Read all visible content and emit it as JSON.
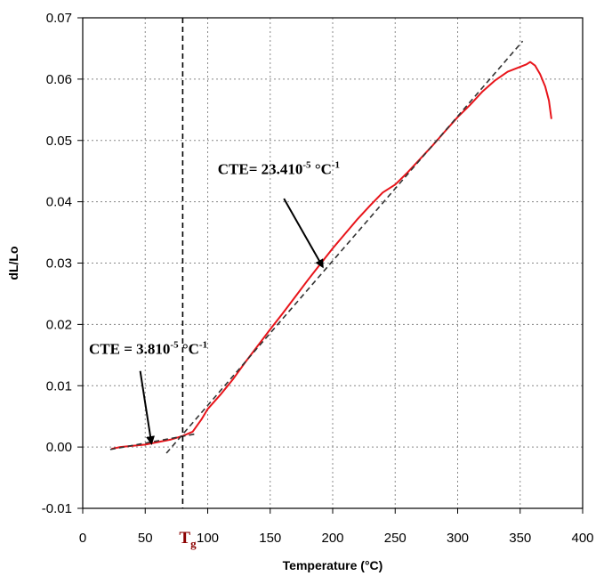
{
  "chart_data": {
    "type": "line",
    "xlabel": "Temperature (°C)",
    "ylabel": "dL/Lo",
    "xlim": [
      0,
      400
    ],
    "ylim": [
      -0.01,
      0.07
    ],
    "x_ticks": [
      "0",
      "50",
      "100",
      "150",
      "200",
      "250",
      "300",
      "350",
      "400"
    ],
    "y_ticks": [
      "-0.01",
      "0.00",
      "0.01",
      "0.02",
      "0.03",
      "0.04",
      "0.05",
      "0.06",
      "0.07"
    ],
    "x_tick_values": [
      0,
      50,
      100,
      150,
      200,
      250,
      300,
      350,
      400
    ],
    "y_tick_values": [
      -0.01,
      0.0,
      0.01,
      0.02,
      0.03,
      0.04,
      0.05,
      0.06,
      0.07
    ],
    "grid": true,
    "series": [
      {
        "color": "#e8141a",
        "style": "solid",
        "points": [
          [
            23,
            -0.0003
          ],
          [
            30,
            0.0
          ],
          [
            40,
            0.0002
          ],
          [
            50,
            0.0004
          ],
          [
            60,
            0.0008
          ],
          [
            70,
            0.0012
          ],
          [
            80,
            0.0018
          ],
          [
            88,
            0.0025
          ],
          [
            95,
            0.0045
          ],
          [
            100,
            0.0062
          ],
          [
            110,
            0.0085
          ],
          [
            120,
            0.011
          ],
          [
            130,
            0.0138
          ],
          [
            140,
            0.0165
          ],
          [
            150,
            0.0192
          ],
          [
            160,
            0.0218
          ],
          [
            170,
            0.0245
          ],
          [
            180,
            0.0272
          ],
          [
            190,
            0.0298
          ],
          [
            200,
            0.0324
          ],
          [
            210,
            0.0348
          ],
          [
            220,
            0.0372
          ],
          [
            230,
            0.0394
          ],
          [
            240,
            0.0415
          ],
          [
            250,
            0.0428
          ],
          [
            260,
            0.0448
          ],
          [
            270,
            0.047
          ],
          [
            280,
            0.0492
          ],
          [
            290,
            0.0515
          ],
          [
            300,
            0.0538
          ],
          [
            310,
            0.0558
          ],
          [
            320,
            0.058
          ],
          [
            330,
            0.0598
          ],
          [
            340,
            0.0612
          ],
          [
            350,
            0.062
          ],
          [
            355,
            0.0624
          ],
          [
            358,
            0.0628
          ],
          [
            362,
            0.0622
          ],
          [
            366,
            0.0608
          ],
          [
            370,
            0.0588
          ],
          [
            373,
            0.0565
          ],
          [
            375,
            0.0535
          ]
        ]
      },
      {
        "color": "#333333",
        "style": "dashed",
        "points": [
          [
            22,
            -0.0004
          ],
          [
            92,
            0.0022
          ]
        ]
      },
      {
        "color": "#333333",
        "style": "dashed",
        "points": [
          [
            67,
            -0.001
          ],
          [
            352,
            0.0662
          ]
        ]
      }
    ],
    "vertical_line": {
      "x": 80,
      "label": "T",
      "label_sub": "g"
    },
    "annotations": [
      {
        "text": "CTE = 3.810",
        "sup": "-5",
        "unit": "°C",
        "unit_sup": "-1",
        "label_at": [
          5,
          0.0152
        ],
        "arrow_from": [
          46,
          0.0124
        ],
        "arrow_to": [
          55,
          0.0006
        ]
      },
      {
        "text": "CTE= 23.410",
        "sup": "-5",
        "unit": "°C",
        "unit_sup": "-1",
        "label_at": [
          108,
          0.0445
        ],
        "arrow_from": [
          161,
          0.0405
        ],
        "arrow_to": [
          192,
          0.0294
        ]
      }
    ]
  }
}
